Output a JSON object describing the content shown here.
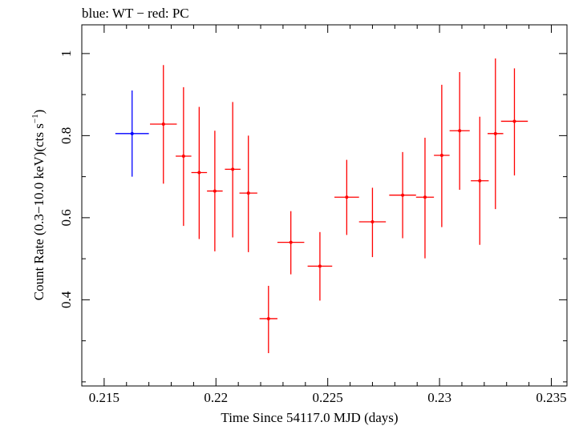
{
  "chart_data": {
    "type": "scatter",
    "title": "blue: WT − red: PC",
    "xlabel": "Time Since 54117.0 MJD (days)",
    "ylabel_main": "Count Rate (0.3−10.0 keV)(cts s",
    "ylabel_sup": "−1",
    "ylabel_end": ")",
    "xlim": [
      0.214,
      0.2357
    ],
    "ylim": [
      0.19,
      1.07
    ],
    "x_ticks": [
      0.215,
      0.22,
      0.225,
      0.23,
      0.235
    ],
    "x_tick_labels": [
      "0.215",
      "0.22",
      "0.225",
      "0.23",
      "0.235"
    ],
    "y_ticks": [
      0.4,
      0.6,
      0.8,
      1.0
    ],
    "y_tick_labels": [
      "0.4",
      "0.6",
      "0.8",
      "1"
    ],
    "grid": false,
    "series": [
      {
        "color": "#0000ff",
        "points": [
          {
            "x": 0.21625,
            "y": 0.805,
            "xerr": 0.00075,
            "ylo": 0.7,
            "yhi": 0.91
          }
        ]
      },
      {
        "color": "#ff0000",
        "points": [
          {
            "x": 0.21765,
            "y": 0.828,
            "xerr": 0.0006,
            "ylo": 0.683,
            "yhi": 0.972
          },
          {
            "x": 0.21855,
            "y": 0.75,
            "xerr": 0.00035,
            "ylo": 0.58,
            "yhi": 0.918
          },
          {
            "x": 0.21925,
            "y": 0.71,
            "xerr": 0.00035,
            "ylo": 0.548,
            "yhi": 0.87
          },
          {
            "x": 0.21995,
            "y": 0.665,
            "xerr": 0.00035,
            "ylo": 0.518,
            "yhi": 0.812
          },
          {
            "x": 0.22075,
            "y": 0.718,
            "xerr": 0.00035,
            "ylo": 0.552,
            "yhi": 0.882
          },
          {
            "x": 0.22145,
            "y": 0.66,
            "xerr": 0.0004,
            "ylo": 0.516,
            "yhi": 0.8
          },
          {
            "x": 0.22235,
            "y": 0.354,
            "xerr": 0.0004,
            "ylo": 0.27,
            "yhi": 0.434
          },
          {
            "x": 0.22335,
            "y": 0.54,
            "xerr": 0.0006,
            "ylo": 0.462,
            "yhi": 0.616
          },
          {
            "x": 0.22465,
            "y": 0.482,
            "xerr": 0.00055,
            "ylo": 0.398,
            "yhi": 0.565
          },
          {
            "x": 0.22585,
            "y": 0.65,
            "xerr": 0.00055,
            "ylo": 0.558,
            "yhi": 0.741
          },
          {
            "x": 0.227,
            "y": 0.59,
            "xerr": 0.0006,
            "ylo": 0.504,
            "yhi": 0.673
          },
          {
            "x": 0.22835,
            "y": 0.655,
            "xerr": 0.0006,
            "ylo": 0.55,
            "yhi": 0.76
          },
          {
            "x": 0.22935,
            "y": 0.65,
            "xerr": 0.0004,
            "ylo": 0.501,
            "yhi": 0.795
          },
          {
            "x": 0.2301,
            "y": 0.752,
            "xerr": 0.00035,
            "ylo": 0.577,
            "yhi": 0.924
          },
          {
            "x": 0.2309,
            "y": 0.812,
            "xerr": 0.00045,
            "ylo": 0.668,
            "yhi": 0.955
          },
          {
            "x": 0.2318,
            "y": 0.69,
            "xerr": 0.0004,
            "ylo": 0.534,
            "yhi": 0.846
          },
          {
            "x": 0.2325,
            "y": 0.805,
            "xerr": 0.00035,
            "ylo": 0.621,
            "yhi": 0.988
          },
          {
            "x": 0.23335,
            "y": 0.835,
            "xerr": 0.0006,
            "ylo": 0.703,
            "yhi": 0.964
          }
        ]
      }
    ]
  }
}
